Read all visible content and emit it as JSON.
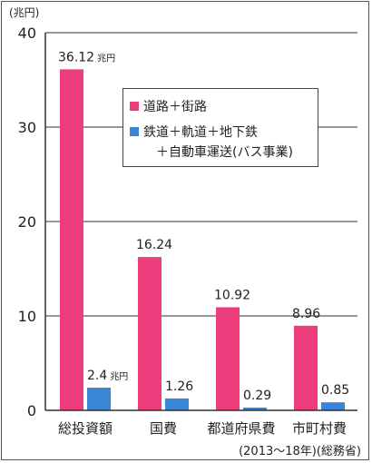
{
  "chart_data": {
    "type": "bar",
    "unit_label": "(兆円)",
    "categories": [
      "総投資額",
      "国費",
      "都道府県費",
      "市町村費"
    ],
    "series": [
      {
        "name": "道路＋街路",
        "color": "#ee3d7d",
        "values": [
          36.12,
          16.24,
          10.92,
          8.96
        ],
        "labels": [
          "36.12",
          "16.24",
          "10.92",
          "8.96"
        ]
      },
      {
        "name": "鉄道＋軌道＋地下鉄＋自動車運送(バス事業)",
        "name_line1": "鉄道＋軌道＋地下鉄",
        "name_line2": "＋自動車運送(バス事業)",
        "color": "#3a86d4",
        "values": [
          2.4,
          1.26,
          0.29,
          0.85
        ],
        "labels": [
          "2.4",
          "1.26",
          "0.29",
          "0.85"
        ]
      }
    ],
    "first_bar_unit_suffix": "兆円",
    "ylim": [
      0,
      40
    ],
    "yticks": [
      0,
      10,
      20,
      30,
      40
    ],
    "grid": true,
    "legend_position": "top-right",
    "source_note": "(2013～18年)(総務省)"
  }
}
